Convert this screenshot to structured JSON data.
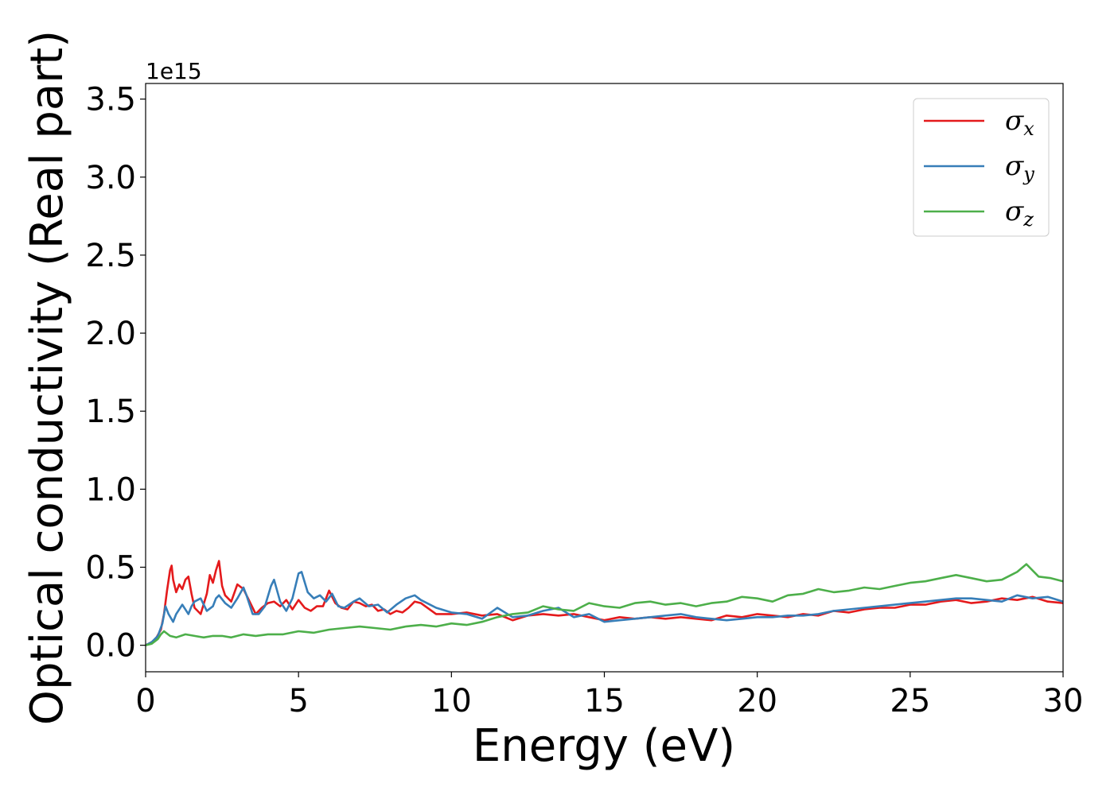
{
  "chart_data": {
    "type": "line",
    "title": "",
    "xlabel": "Energy (eV)",
    "ylabel": "Optical conductivity (Real part)",
    "y_offset_label": "1e15",
    "xlim": [
      0,
      30
    ],
    "ylim": [
      -0.17,
      3.6
    ],
    "x_ticks": [
      0,
      5,
      10,
      15,
      20,
      25,
      30
    ],
    "x_tick_labels": [
      "0",
      "5",
      "10",
      "15",
      "20",
      "25",
      "30"
    ],
    "y_ticks": [
      0.0,
      0.5,
      1.0,
      1.5,
      2.0,
      2.5,
      3.0,
      3.5
    ],
    "y_tick_labels": [
      "0.0",
      "0.5",
      "1.0",
      "1.5",
      "2.0",
      "2.5",
      "3.0",
      "3.5"
    ],
    "grid": false,
    "legend_position": "top-right",
    "series": [
      {
        "name": "σx",
        "symbol": "σ",
        "subscript": "x",
        "color": "#e41a1c",
        "x": [
          0,
          0.3,
          0.5,
          0.6,
          0.7,
          0.8,
          0.85,
          0.9,
          1.0,
          1.1,
          1.2,
          1.3,
          1.4,
          1.5,
          1.6,
          1.8,
          2.0,
          2.1,
          2.2,
          2.3,
          2.4,
          2.5,
          2.6,
          2.8,
          3.0,
          3.2,
          3.4,
          3.6,
          3.8,
          4.0,
          4.2,
          4.4,
          4.6,
          4.8,
          5.0,
          5.2,
          5.4,
          5.6,
          5.8,
          6.0,
          6.2,
          6.4,
          6.6,
          6.8,
          7.0,
          7.2,
          7.4,
          7.6,
          7.8,
          8.0,
          8.2,
          8.4,
          8.6,
          8.8,
          9.0,
          9.5,
          10.0,
          10.5,
          11.0,
          11.5,
          12.0,
          12.5,
          13.0,
          13.5,
          14.0,
          14.5,
          15.0,
          15.5,
          16.0,
          16.5,
          17.0,
          17.5,
          18.0,
          18.5,
          19.0,
          19.5,
          20.0,
          20.5,
          21.0,
          21.5,
          22.0,
          22.5,
          23.0,
          23.5,
          24.0,
          24.5,
          25.0,
          25.5,
          26.0,
          26.5,
          27.0,
          27.5,
          28.0,
          28.5,
          29.0,
          29.5,
          30.0
        ],
        "y": [
          0.0,
          0.03,
          0.1,
          0.2,
          0.35,
          0.48,
          0.51,
          0.42,
          0.34,
          0.39,
          0.36,
          0.42,
          0.44,
          0.33,
          0.24,
          0.2,
          0.33,
          0.45,
          0.4,
          0.48,
          0.54,
          0.38,
          0.32,
          0.28,
          0.39,
          0.36,
          0.28,
          0.2,
          0.24,
          0.27,
          0.28,
          0.25,
          0.29,
          0.23,
          0.29,
          0.24,
          0.22,
          0.25,
          0.25,
          0.35,
          0.27,
          0.24,
          0.23,
          0.28,
          0.27,
          0.25,
          0.26,
          0.22,
          0.23,
          0.2,
          0.22,
          0.21,
          0.24,
          0.28,
          0.27,
          0.2,
          0.2,
          0.21,
          0.19,
          0.2,
          0.16,
          0.19,
          0.2,
          0.19,
          0.2,
          0.18,
          0.16,
          0.18,
          0.17,
          0.18,
          0.17,
          0.18,
          0.17,
          0.16,
          0.19,
          0.18,
          0.2,
          0.19,
          0.18,
          0.2,
          0.19,
          0.22,
          0.21,
          0.23,
          0.24,
          0.24,
          0.26,
          0.26,
          0.28,
          0.29,
          0.27,
          0.28,
          0.3,
          0.29,
          0.31,
          0.28,
          0.27
        ]
      },
      {
        "name": "σy",
        "symbol": "σ",
        "subscript": "y",
        "color": "#377eb8",
        "x": [
          0,
          0.2,
          0.4,
          0.55,
          0.65,
          0.75,
          0.9,
          1.0,
          1.2,
          1.4,
          1.5,
          1.6,
          1.8,
          2.0,
          2.2,
          2.3,
          2.4,
          2.6,
          2.8,
          3.0,
          3.2,
          3.3,
          3.5,
          3.7,
          3.9,
          4.1,
          4.2,
          4.4,
          4.6,
          4.8,
          5.0,
          5.1,
          5.3,
          5.5,
          5.7,
          5.9,
          6.1,
          6.3,
          6.5,
          6.8,
          7.0,
          7.3,
          7.6,
          7.9,
          8.2,
          8.5,
          8.8,
          9.0,
          9.5,
          10.0,
          10.5,
          11.0,
          11.5,
          12.0,
          12.5,
          13.0,
          13.5,
          14.0,
          14.5,
          15.0,
          15.5,
          16.0,
          16.5,
          17.0,
          17.5,
          18.0,
          18.5,
          19.0,
          19.5,
          20.0,
          20.5,
          21.0,
          21.5,
          22.0,
          22.5,
          23.0,
          23.5,
          24.0,
          24.5,
          25.0,
          25.5,
          26.0,
          26.5,
          27.0,
          27.5,
          28.0,
          28.5,
          29.0,
          29.5,
          30.0
        ],
        "y": [
          0.0,
          0.02,
          0.06,
          0.14,
          0.25,
          0.2,
          0.15,
          0.2,
          0.26,
          0.2,
          0.25,
          0.28,
          0.3,
          0.22,
          0.25,
          0.3,
          0.32,
          0.27,
          0.24,
          0.3,
          0.37,
          0.32,
          0.2,
          0.2,
          0.25,
          0.38,
          0.42,
          0.28,
          0.22,
          0.3,
          0.46,
          0.47,
          0.34,
          0.3,
          0.32,
          0.28,
          0.33,
          0.25,
          0.24,
          0.28,
          0.3,
          0.25,
          0.26,
          0.21,
          0.26,
          0.3,
          0.32,
          0.29,
          0.24,
          0.21,
          0.2,
          0.17,
          0.24,
          0.18,
          0.19,
          0.22,
          0.24,
          0.18,
          0.2,
          0.15,
          0.16,
          0.17,
          0.18,
          0.19,
          0.2,
          0.18,
          0.17,
          0.16,
          0.17,
          0.18,
          0.18,
          0.19,
          0.19,
          0.2,
          0.22,
          0.23,
          0.24,
          0.25,
          0.26,
          0.27,
          0.28,
          0.29,
          0.3,
          0.3,
          0.29,
          0.28,
          0.32,
          0.3,
          0.31,
          0.28
        ]
      },
      {
        "name": "σz",
        "symbol": "σ",
        "subscript": "z",
        "color": "#4daf4a",
        "x": [
          0,
          0.2,
          0.4,
          0.5,
          0.6,
          0.8,
          1.0,
          1.3,
          1.6,
          1.9,
          2.2,
          2.5,
          2.8,
          3.2,
          3.6,
          4.0,
          4.5,
          5.0,
          5.5,
          6.0,
          6.5,
          7.0,
          7.5,
          8.0,
          8.5,
          9.0,
          9.5,
          10.0,
          10.5,
          11.0,
          11.5,
          12.0,
          12.5,
          13.0,
          13.5,
          14.0,
          14.5,
          15.0,
          15.5,
          16.0,
          16.5,
          17.0,
          17.5,
          18.0,
          18.5,
          19.0,
          19.5,
          20.0,
          20.5,
          21.0,
          21.5,
          22.0,
          22.5,
          23.0,
          23.5,
          24.0,
          24.5,
          25.0,
          25.5,
          26.0,
          26.5,
          27.0,
          27.5,
          28.0,
          28.5,
          28.8,
          29.2,
          29.6,
          30.0
        ],
        "y": [
          0.0,
          0.01,
          0.04,
          0.07,
          0.09,
          0.06,
          0.05,
          0.07,
          0.06,
          0.05,
          0.06,
          0.06,
          0.05,
          0.07,
          0.06,
          0.07,
          0.07,
          0.09,
          0.08,
          0.1,
          0.11,
          0.12,
          0.11,
          0.1,
          0.12,
          0.13,
          0.12,
          0.14,
          0.13,
          0.15,
          0.18,
          0.2,
          0.21,
          0.25,
          0.23,
          0.22,
          0.27,
          0.25,
          0.24,
          0.27,
          0.28,
          0.26,
          0.27,
          0.25,
          0.27,
          0.28,
          0.31,
          0.3,
          0.28,
          0.32,
          0.33,
          0.36,
          0.34,
          0.35,
          0.37,
          0.36,
          0.38,
          0.4,
          0.41,
          0.43,
          0.45,
          0.43,
          0.41,
          0.42,
          0.47,
          0.52,
          0.44,
          0.43,
          0.41
        ]
      }
    ]
  }
}
